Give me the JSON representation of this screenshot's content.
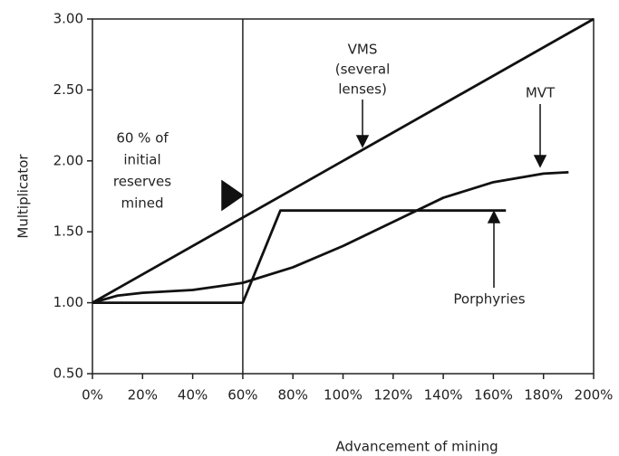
{
  "chart_data": {
    "type": "line",
    "x_label": "Advancement of mining",
    "y_label": "Multiplicator",
    "xlim": [
      0,
      200
    ],
    "ylim": [
      0.5,
      3
    ],
    "xticks": [
      {
        "value": 0,
        "label": "0%"
      },
      {
        "value": 20,
        "label": "20%"
      },
      {
        "value": 40,
        "label": "40%"
      },
      {
        "value": 60,
        "label": "60%"
      },
      {
        "value": 80,
        "label": "80%"
      },
      {
        "value": 100,
        "label": "100%"
      },
      {
        "value": 120,
        "label": "120%"
      },
      {
        "value": 140,
        "label": "140%"
      },
      {
        "value": 160,
        "label": "160%"
      },
      {
        "value": 180,
        "label": "180%"
      },
      {
        "value": 200,
        "label": "200%"
      }
    ],
    "yticks": [
      {
        "value": 0.5,
        "label": "0.50"
      },
      {
        "value": 1,
        "label": "1.00"
      },
      {
        "value": 1.5,
        "label": "1.50"
      },
      {
        "value": 2,
        "label": "2.00"
      },
      {
        "value": 2.5,
        "label": "2.50"
      },
      {
        "value": 3,
        "label": "3.00"
      }
    ],
    "vline": 60,
    "series": [
      {
        "name": "VMS",
        "color": "#111111",
        "x": [
          0,
          200
        ],
        "values": [
          1,
          3
        ]
      },
      {
        "name": "MVT",
        "color": "#111111",
        "x": [
          0,
          10,
          20,
          40,
          60,
          80,
          100,
          120,
          140,
          160,
          180,
          190
        ],
        "values": [
          1,
          1.05,
          1.07,
          1.09,
          1.14,
          1.25,
          1.4,
          1.57,
          1.74,
          1.85,
          1.91,
          1.92
        ]
      },
      {
        "name": "Porphyries",
        "color": "#111111",
        "x": [
          0,
          60,
          75,
          165
        ],
        "values": [
          1,
          1,
          1.65,
          1.65
        ]
      }
    ],
    "annotations": [
      {
        "lines": [
          "60 % of",
          "initial",
          "reserves",
          "mined"
        ]
      },
      {
        "lines": [
          "VMS",
          "(several",
          "lenses)"
        ]
      },
      {
        "lines": [
          "MVT"
        ]
      },
      {
        "lines": [
          "Porphyries"
        ]
      }
    ]
  }
}
